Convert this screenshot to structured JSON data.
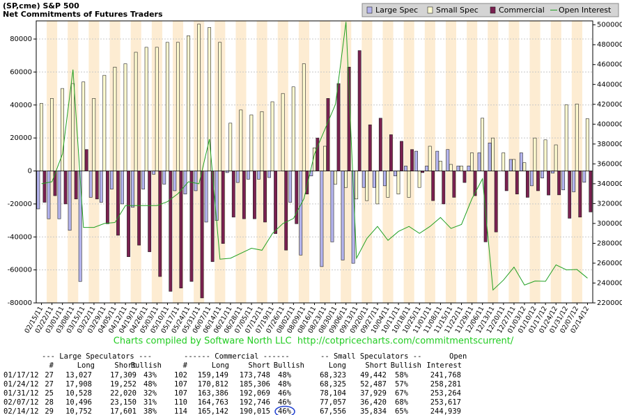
{
  "chart_data": {
    "type": "bar",
    "title": "(SP,cme) S&P 500",
    "subtitle": "Net Commitments of Futures Traders",
    "categories": [
      "02/15/11",
      "02/22/11",
      "03/01/11",
      "03/08/11",
      "03/15/11",
      "03/22/11",
      "03/29/11",
      "04/05/11",
      "04/12/11",
      "04/19/11",
      "04/26/11",
      "05/03/11",
      "05/10/11",
      "05/17/11",
      "05/24/11",
      "05/31/11",
      "06/07/11",
      "06/14/11",
      "06/21/11",
      "06/28/11",
      "07/05/11",
      "07/12/11",
      "07/19/11",
      "07/26/11",
      "08/02/11",
      "08/09/11",
      "08/16/11",
      "08/23/11",
      "08/30/11",
      "09/06/11",
      "09/13/11",
      "09/20/11",
      "09/27/11",
      "10/04/11",
      "10/11/11",
      "10/18/11",
      "10/25/11",
      "11/01/11",
      "11/08/11",
      "11/15/11",
      "11/22/11",
      "11/29/11",
      "12/06/11",
      "12/13/11",
      "12/20/11",
      "12/27/11",
      "01/03/12",
      "01/10/12",
      "01/17/12",
      "01/24/12",
      "01/31/12",
      "02/07/12",
      "02/14/12"
    ],
    "series": [
      {
        "name": "Large Spec",
        "type": "bar",
        "color": "#b4b4ee",
        "values": [
          -23000,
          -29000,
          -29000,
          -36000,
          -67000,
          -16000,
          -19000,
          -11000,
          -20000,
          -22000,
          -11000,
          -2000,
          -8000,
          -12000,
          -14000,
          -12000,
          -31000,
          -30000,
          -1000,
          -7000,
          -5000,
          -5000,
          -4000,
          0,
          -19000,
          -51000,
          -3000,
          -58000,
          -43000,
          -54000,
          -56000,
          -10000,
          -10000,
          -9000,
          -3000,
          3000,
          12000,
          3000,
          12000,
          13000,
          3000,
          3000,
          11000,
          17000,
          0,
          7000,
          11000,
          -9000,
          -4282,
          -1344,
          -11492,
          -12654,
          -6849
        ]
      },
      {
        "name": "Small Spec",
        "type": "bar",
        "color": "#fffbd0",
        "values": [
          41000,
          44000,
          50000,
          53000,
          54000,
          44000,
          58000,
          63000,
          65000,
          72000,
          75000,
          75000,
          78000,
          78000,
          82000,
          89000,
          87000,
          78000,
          29000,
          37000,
          34000,
          36000,
          42000,
          47000,
          51000,
          65000,
          14000,
          15000,
          -8000,
          -10000,
          -17000,
          -18000,
          -20000,
          -16000,
          -14000,
          -16000,
          -10000,
          15000,
          6000,
          4000,
          3000,
          11000,
          32000,
          20000,
          11000,
          7000,
          5000,
          20000,
          18881,
          15838,
          40175,
          40637,
          31722
        ]
      },
      {
        "name": "Commercial",
        "type": "bar",
        "color": "#7a2050",
        "values": [
          -19000,
          -15000,
          -20000,
          -17000,
          13000,
          -17000,
          -32000,
          -39000,
          -52000,
          -45000,
          -49000,
          -64000,
          -73000,
          -71000,
          -67000,
          -77000,
          -55000,
          -44000,
          -28000,
          -29000,
          -29000,
          -31000,
          -38000,
          -48000,
          -32000,
          -14000,
          20000,
          44000,
          53000,
          63000,
          73000,
          28000,
          32000,
          22000,
          18000,
          13000,
          -1000,
          -18000,
          -20000,
          -16000,
          -7000,
          -15000,
          -43000,
          -37000,
          -12000,
          -14000,
          -16000,
          -12000,
          -14599,
          -14494,
          -28683,
          -27983,
          -24873
        ]
      },
      {
        "name": "Open Interest",
        "type": "line",
        "axis": "y2",
        "color": "#22a022",
        "values": [
          340000,
          342000,
          370000,
          455000,
          296000,
          296000,
          300000,
          301000,
          318000,
          318000,
          318000,
          318000,
          322000,
          330000,
          342000,
          340000,
          385000,
          264000,
          265000,
          270000,
          275000,
          273000,
          290000,
          300000,
          305000,
          325000,
          370000,
          395000,
          420000,
          503000,
          265000,
          285000,
          297000,
          283000,
          292000,
          297000,
          290000,
          297000,
          306000,
          295000,
          299000,
          325000,
          345000,
          233000,
          243000,
          256000,
          238000,
          242000,
          241768,
          258281,
          253264,
          253617,
          244939
        ]
      }
    ],
    "ylim": [
      -80000,
      91000
    ],
    "yticks": [
      -80000,
      -60000,
      -40000,
      -20000,
      0,
      20000,
      40000,
      60000,
      80000
    ],
    "y2lim": [
      220000,
      504000
    ],
    "y2ticks": [
      220000,
      240000,
      260000,
      280000,
      300000,
      320000,
      340000,
      360000,
      380000,
      400000,
      420000,
      440000,
      460000,
      480000,
      500000
    ],
    "grid": true,
    "legend": "top-right"
  },
  "credit": "Charts compiled by Software North LLC  http://cotpricecharts.com/commitmentscurrent/",
  "table": {
    "group_header": [
      "--- Large Speculators ---",
      "------ Commercial ------",
      "-- Small Speculators --",
      "Open"
    ],
    "header": [
      "#",
      "Long",
      "Short",
      "Bullish",
      "#",
      "Long",
      "Short",
      "Bullish",
      "Long",
      "Short",
      "Bullish",
      "Interest"
    ],
    "rows": [
      [
        "01/17/12",
        "27",
        "13,027",
        "17,309",
        "43%",
        "102",
        "159,149",
        "173,748",
        "48%",
        "68,323",
        "49,442",
        "58%",
        "241,768"
      ],
      [
        "01/24/12",
        "27",
        "17,908",
        "19,252",
        "48%",
        "107",
        "170,812",
        "185,306",
        "48%",
        "68,325",
        "52,487",
        "57%",
        "258,281"
      ],
      [
        "01/31/12",
        "25",
        "10,528",
        "22,020",
        "32%",
        "107",
        "163,386",
        "192,069",
        "46%",
        "78,104",
        "37,929",
        "67%",
        "253,264"
      ],
      [
        "02/07/12",
        "28",
        "10,496",
        "23,150",
        "31%",
        "110",
        "164,763",
        "192,746",
        "46%",
        "77,057",
        "36,420",
        "68%",
        "253,617"
      ],
      [
        "02/14/12",
        "29",
        "10,752",
        "17,601",
        "38%",
        "114",
        "165,142",
        "190,015",
        "46%",
        "67,556",
        "35,834",
        "65%",
        "244,939"
      ]
    ]
  }
}
